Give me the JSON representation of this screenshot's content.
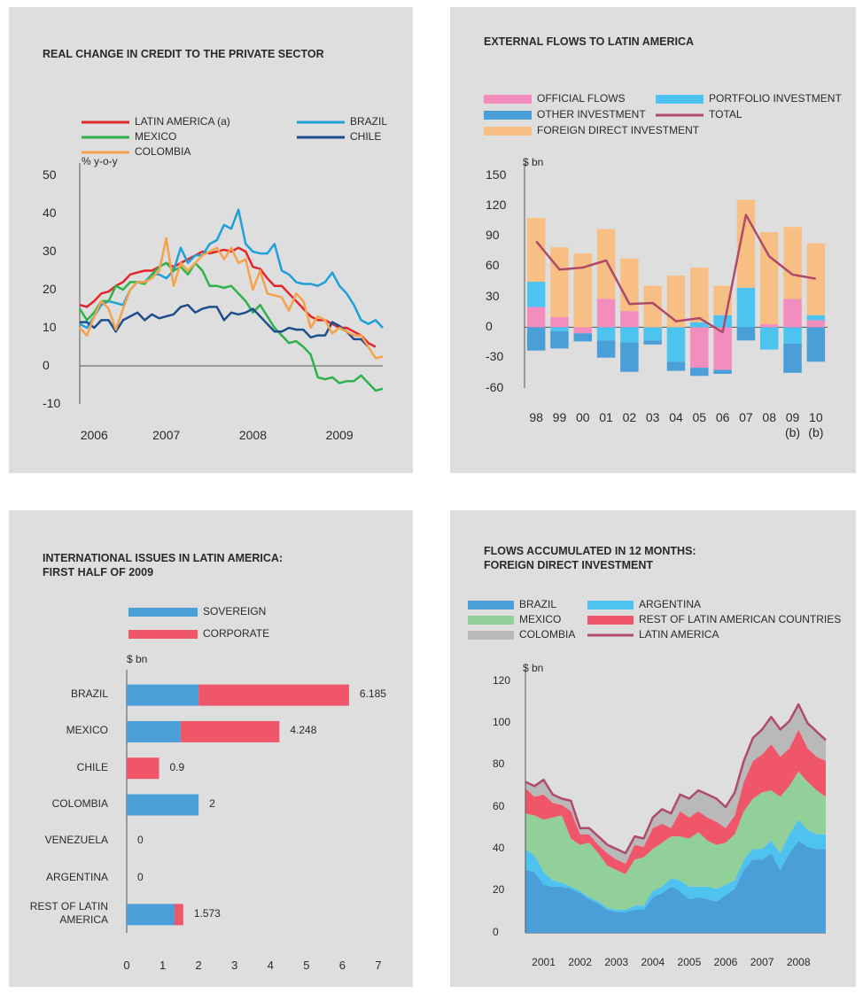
{
  "chart_data": [
    {
      "type": "line",
      "title": "REAL CHANGE IN CREDIT TO THE PRIVATE SECTOR",
      "unit": "% y-o-y",
      "categories": [
        null,
        null,
        "2006",
        null,
        null,
        null,
        null,
        null,
        null,
        null,
        null,
        null,
        "2007",
        null,
        null,
        null,
        null,
        null,
        null,
        null,
        null,
        null,
        null,
        null,
        "2008",
        null,
        null,
        null,
        null,
        null,
        null,
        null,
        null,
        null,
        null,
        null,
        "2009",
        null,
        null,
        null,
        null,
        null,
        null
      ],
      "ylim": [
        -10,
        50
      ],
      "yticks": [
        -10,
        0,
        10,
        20,
        30,
        40,
        50
      ],
      "series": [
        {
          "name": "LATIN AMERICA (a)",
          "color": "#e3262b",
          "values": [
            16,
            15.5,
            17,
            19,
            19.5,
            21,
            22,
            24,
            24.5,
            25,
            25,
            26,
            27,
            26,
            27,
            28,
            29,
            30,
            29.5,
            30,
            30.5,
            30,
            31,
            30,
            26,
            25.5,
            23,
            21,
            21,
            19,
            17,
            15,
            13,
            12,
            12,
            11,
            10,
            10,
            9,
            8,
            6,
            5,
            null
          ]
        },
        {
          "name": "BRAZIL",
          "color": "#1fa0d8",
          "values": [
            11,
            10,
            13,
            16,
            17,
            16.5,
            16,
            20,
            22,
            22,
            24,
            24,
            23,
            25,
            31,
            27,
            29,
            29,
            32,
            33,
            37,
            36,
            41,
            32,
            30,
            29.5,
            29.5,
            32,
            25,
            24,
            22,
            21.5,
            21.5,
            21,
            22,
            24.5,
            21,
            19,
            16,
            12,
            11,
            12,
            10
          ]
        },
        {
          "name": "MEXICO",
          "color": "#2db34a",
          "values": [
            15,
            12,
            14,
            17,
            17,
            21,
            20,
            22,
            22,
            21.5,
            24,
            26,
            27,
            25,
            26,
            24,
            27,
            25,
            21,
            21,
            20.5,
            21,
            19,
            17,
            14,
            16,
            13,
            10,
            8,
            6,
            6.5,
            5,
            3,
            -3,
            -3.5,
            -3,
            -4.5,
            -4,
            -4,
            -2.5,
            -4.5,
            -6.5,
            -6
          ]
        },
        {
          "name": "CHILE",
          "color": "#1f4e8c",
          "values": [
            11.5,
            11.5,
            10,
            12,
            12,
            9,
            12,
            13,
            14,
            12,
            13.5,
            12.5,
            13,
            13.5,
            15.5,
            16,
            14,
            15,
            15.5,
            15.5,
            12,
            14,
            13.5,
            14,
            15,
            13,
            11,
            9,
            9,
            10,
            9.5,
            9.5,
            7.5,
            8,
            8,
            11.5,
            10.5,
            9,
            7,
            7,
            5,
            null,
            null
          ]
        },
        {
          "name": "COLOMBIA",
          "color": "#f7a24a",
          "values": [
            10,
            8,
            13,
            17,
            15,
            9.5,
            15,
            20,
            22,
            22,
            23,
            25,
            33.5,
            21,
            27,
            25,
            27,
            29,
            30,
            31,
            28,
            31,
            27,
            28,
            20,
            25,
            19,
            18.5,
            18,
            14.5,
            19,
            17,
            10,
            13,
            12,
            8.5,
            10,
            9,
            8,
            8,
            5,
            2,
            2.5
          ]
        }
      ]
    },
    {
      "type": "bar",
      "stacked": true,
      "title": "EXTERNAL FLOWS TO LATIN AMERICA",
      "unit": "$ bn",
      "categories": [
        "98",
        "99",
        "00",
        "01",
        "02",
        "03",
        "04",
        "05",
        "06",
        "07",
        "08",
        "09\n(b)",
        "10\n(b)"
      ],
      "ylim": [
        -60,
        150
      ],
      "yticks": [
        -60,
        -30,
        0,
        30,
        60,
        90,
        120,
        150
      ],
      "series": [
        {
          "name": "OFFICIAL FLOWS",
          "color": "#f28dbd",
          "values": [
            20,
            10,
            -6,
            28,
            16,
            0,
            0,
            -40,
            -42,
            0,
            3,
            28,
            7
          ]
        },
        {
          "name": "PORTFOLIO INVESTMENT",
          "color": "#4cc4ef",
          "values": [
            25,
            -4,
            0,
            -13,
            -15,
            -13,
            -34,
            5,
            12,
            39,
            -22,
            -16,
            5
          ]
        },
        {
          "name": "OTHER INVESTMENT",
          "color": "#4a9fd8",
          "values": [
            -23,
            -17,
            -8,
            -17,
            -29,
            -4,
            -9,
            -8,
            -4,
            -13,
            0,
            -29,
            -34
          ]
        },
        {
          "name": "TOTAL",
          "type": "line",
          "color": "#b04a6a",
          "values": [
            85,
            57,
            59,
            66,
            23,
            24,
            6,
            9,
            -5,
            111,
            70,
            52,
            48
          ]
        },
        {
          "name": "FOREIGN DIRECT INVESTMENT",
          "color": "#f7bf84",
          "values": [
            63,
            69,
            73,
            69,
            52,
            41,
            51,
            54,
            29,
            87,
            91,
            71,
            71
          ]
        }
      ]
    },
    {
      "type": "bar",
      "orientation": "horizontal",
      "stacked": true,
      "title": "INTERNATIONAL ISSUES IN LATIN AMERICA:\nFIRST HALF OF 2009",
      "unit": "$ bn",
      "categories": [
        "BRAZIL",
        "MEXICO",
        "CHILE",
        "COLOMBIA",
        "VENEZUELA",
        "ARGENTINA",
        "REST OF LATIN\nAMERICA"
      ],
      "xlim": [
        0,
        7
      ],
      "xticks": [
        0,
        1,
        2,
        3,
        4,
        5,
        6,
        7
      ],
      "series": [
        {
          "name": "SOVEREIGN",
          "color": "#4a9fd8",
          "values": [
            2,
            1.5,
            0,
            2,
            0,
            0,
            1.33
          ]
        },
        {
          "name": "CORPORATE",
          "color": "#f0566a",
          "values": [
            4.185,
            2.748,
            0.9,
            0,
            0,
            0,
            0.243
          ]
        }
      ],
      "totals": [
        6.185,
        4.248,
        0.9,
        2,
        0,
        0,
        1.573
      ]
    },
    {
      "type": "area",
      "stacked": true,
      "title": "FLOWS ACCUMULATED IN 12 MONTHS:\nFOREIGN DIRECT INVESTMENT",
      "unit": "$ bn",
      "categories": [
        null,
        null,
        "2001",
        null,
        null,
        null,
        "2002",
        null,
        null,
        null,
        "2003",
        null,
        null,
        null,
        "2004",
        null,
        null,
        null,
        "2005",
        null,
        null,
        null,
        "2006",
        null,
        null,
        null,
        "2007",
        null,
        null,
        null,
        "2008",
        null,
        null,
        null
      ],
      "ylim": [
        0,
        120
      ],
      "yticks": [
        0,
        20,
        40,
        60,
        80,
        100,
        120
      ],
      "series": [
        {
          "name": "BRAZIL",
          "color": "#4a9fd8",
          "values": [
            30,
            29,
            23,
            22,
            22,
            21,
            19,
            16,
            14,
            11,
            10,
            10,
            11,
            11,
            17,
            19,
            22,
            20,
            16,
            17,
            16,
            15,
            18,
            21,
            30,
            35,
            35,
            38,
            30,
            38,
            44,
            41,
            40,
            40
          ]
        },
        {
          "name": "ARGENTINA",
          "color": "#4fc3f0",
          "values": [
            10,
            8,
            6,
            3,
            2,
            1,
            1,
            1,
            1,
            1,
            1,
            1,
            2,
            2,
            3,
            3,
            4,
            5,
            6,
            5,
            6,
            6,
            5,
            4,
            5,
            5,
            5,
            6,
            8,
            9,
            10,
            8,
            7,
            7
          ]
        },
        {
          "name": "MEXICO",
          "color": "#92d09a",
          "values": [
            17,
            19,
            25,
            30,
            32,
            23,
            22,
            26,
            23,
            20,
            19,
            17,
            22,
            23,
            20,
            21,
            20,
            21,
            23,
            26,
            22,
            21,
            20,
            22,
            23,
            24,
            27,
            24,
            27,
            23,
            23,
            23,
            21,
            18
          ]
        },
        {
          "name": "REST OF LATIN AMERICAN COUNTRIES",
          "color": "#f0566a",
          "values": [
            12,
            9,
            12,
            7,
            5,
            13,
            5,
            4,
            4,
            6,
            5,
            5,
            7,
            5,
            10,
            9,
            4,
            12,
            10,
            10,
            11,
            11,
            7,
            9,
            14,
            18,
            18,
            22,
            19,
            18,
            20,
            16,
            16,
            17
          ]
        },
        {
          "name": "COLOMBIA",
          "color": "#b9b9b9",
          "values": [
            3,
            5,
            7,
            4,
            3,
            5,
            3,
            3,
            4,
            4,
            5,
            5,
            4,
            4,
            5,
            7,
            7,
            8,
            9,
            10,
            11,
            11,
            10,
            11,
            10,
            11,
            12,
            13,
            13,
            13,
            12,
            12,
            12,
            10
          ]
        },
        {
          "name": "LATIN AMERICA",
          "type": "line",
          "color": "#b04a6a",
          "values": [
            72,
            70,
            73,
            66,
            64,
            63,
            50,
            50,
            46,
            42,
            40,
            38,
            46,
            45,
            55,
            59,
            57,
            66,
            64,
            68,
            66,
            64,
            60,
            67,
            82,
            93,
            97,
            103,
            97,
            101,
            109,
            100,
            96,
            92
          ]
        }
      ]
    }
  ]
}
